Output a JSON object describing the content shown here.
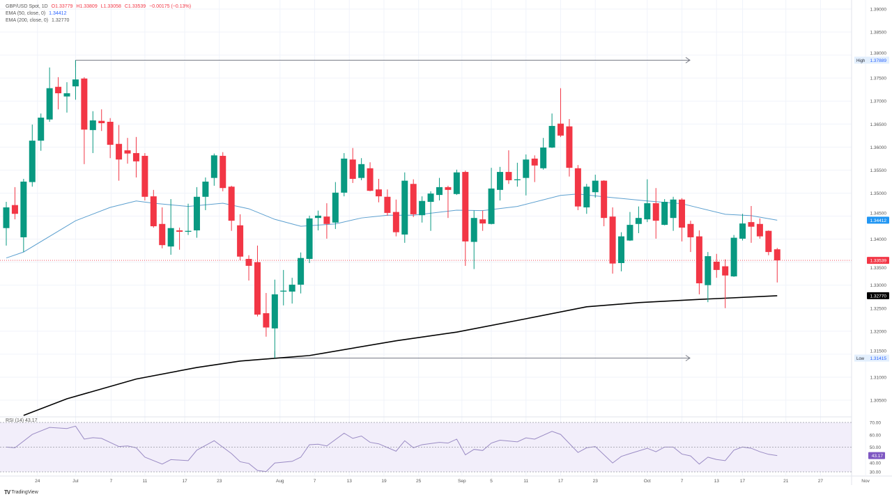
{
  "legend": {
    "symbol": "GBP/USD Spot, 1D",
    "open": "O1.33779",
    "high": "H1.33809",
    "low": "L1.33058",
    "close": "C1.33539",
    "change": "−0.00175 (−0.13%)",
    "ema50_label": "EMA (50, close, 0)",
    "ema50_value": "1.34412",
    "ema200_label": "EMA (200, close, 0)",
    "ema200_value": "1.32770",
    "rsi_label": "RSI (14)",
    "rsi_value": "43.17"
  },
  "footer": {
    "brand": "TradingView",
    "logo_text": "TV"
  },
  "colors": {
    "up": "#089981",
    "down": "#f23645",
    "ema50": "#5b9fcf",
    "ema200": "#000000",
    "rsi": "#9a8bc4",
    "rsi_band": "#f2eefa"
  },
  "chart_data": [
    {
      "type": "candlestick",
      "title": "GBP/USD Spot, 1D",
      "ylim": [
        1.3,
        1.39
      ],
      "grid": true,
      "y_ticks": [
        "1.39000",
        "1.38500",
        "1.38000",
        "1.37500",
        "1.37000",
        "1.36500",
        "1.36000",
        "1.35500",
        "1.35000",
        "1.34500",
        "1.34000",
        "1.33500",
        "1.33000",
        "1.32500",
        "1.32000",
        "1.31500",
        "1.31000",
        "1.30500"
      ],
      "x_ticks": [
        "24",
        "Jul",
        "7",
        "11",
        "17",
        "23",
        "Aug",
        "7",
        "13",
        "19",
        "25",
        "Sep",
        "5",
        "11",
        "17",
        "23",
        "Oct",
        "7",
        "13",
        "17",
        "21",
        "27",
        "Nov"
      ],
      "candles_ohlc": [
        [
          1.3424,
          1.3481,
          1.3386,
          1.3469
        ],
        [
          1.3474,
          1.3513,
          1.3443,
          1.3455
        ],
        [
          1.3404,
          1.3531,
          1.3372,
          1.3525
        ],
        [
          1.3524,
          1.3649,
          1.3514,
          1.3614
        ],
        [
          1.3614,
          1.3673,
          1.3592,
          1.3664
        ],
        [
          1.366,
          1.3773,
          1.3655,
          1.3728
        ],
        [
          1.3731,
          1.3752,
          1.3682,
          1.3717
        ],
        [
          1.371,
          1.3741,
          1.3675,
          1.3717
        ],
        [
          1.3732,
          1.37889,
          1.3703,
          1.3747
        ],
        [
          1.3749,
          1.3752,
          1.3563,
          1.3638
        ],
        [
          1.3637,
          1.3678,
          1.3587,
          1.3658
        ],
        [
          1.3657,
          1.3682,
          1.3635,
          1.3652
        ],
        [
          1.3655,
          1.3663,
          1.3576,
          1.3605
        ],
        [
          1.3607,
          1.3648,
          1.3527,
          1.3573
        ],
        [
          1.3593,
          1.362,
          1.3564,
          1.3586
        ],
        [
          1.3587,
          1.3622,
          1.3534,
          1.3569
        ],
        [
          1.3581,
          1.3587,
          1.3484,
          1.3492
        ],
        [
          1.3493,
          1.3507,
          1.3425,
          1.3428
        ],
        [
          1.3433,
          1.3469,
          1.338,
          1.3387
        ],
        [
          1.3384,
          1.3487,
          1.3366,
          1.3424
        ],
        [
          1.3419,
          1.3425,
          1.3377,
          1.3416
        ],
        [
          1.3416,
          1.3477,
          1.3409,
          1.3418
        ],
        [
          1.3419,
          1.3513,
          1.3403,
          1.3492
        ],
        [
          1.3492,
          1.3534,
          1.3463,
          1.3525
        ],
        [
          1.3533,
          1.3586,
          1.3516,
          1.3582
        ],
        [
          1.3581,
          1.3589,
          1.3504,
          1.3511
        ],
        [
          1.3514,
          1.3516,
          1.3418,
          1.344
        ],
        [
          1.343,
          1.3454,
          1.3354,
          1.3362
        ],
        [
          1.3357,
          1.3365,
          1.331,
          1.3342
        ],
        [
          1.335,
          1.3386,
          1.3232,
          1.3236
        ],
        [
          1.3239,
          1.3283,
          1.3188,
          1.3208
        ],
        [
          1.3206,
          1.3312,
          1.31415,
          1.328
        ],
        [
          1.3286,
          1.3333,
          1.3256,
          1.3288
        ],
        [
          1.3286,
          1.3316,
          1.326,
          1.3301
        ],
        [
          1.3301,
          1.3371,
          1.3282,
          1.3359
        ],
        [
          1.3357,
          1.3451,
          1.3348,
          1.3445
        ],
        [
          1.3446,
          1.3462,
          1.3419,
          1.3451
        ],
        [
          1.3449,
          1.3478,
          1.3401,
          1.3433
        ],
        [
          1.3436,
          1.3524,
          1.3422,
          1.3501
        ],
        [
          1.3501,
          1.3587,
          1.3493,
          1.3575
        ],
        [
          1.3573,
          1.3598,
          1.3522,
          1.3531
        ],
        [
          1.3533,
          1.3576,
          1.3528,
          1.3563
        ],
        [
          1.3554,
          1.3567,
          1.3504,
          1.3505
        ],
        [
          1.3508,
          1.3531,
          1.348,
          1.3493
        ],
        [
          1.3492,
          1.3508,
          1.3451,
          1.3457
        ],
        [
          1.3459,
          1.3486,
          1.3406,
          1.3415
        ],
        [
          1.341,
          1.3545,
          1.3392,
          1.3527
        ],
        [
          1.352,
          1.353,
          1.3448,
          1.3454
        ],
        [
          1.3452,
          1.3493,
          1.3436,
          1.3483
        ],
        [
          1.3481,
          1.3504,
          1.3418,
          1.3499
        ],
        [
          1.3496,
          1.3533,
          1.3484,
          1.3513
        ],
        [
          1.3513,
          1.3516,
          1.3446,
          1.3507
        ],
        [
          1.3498,
          1.3551,
          1.3496,
          1.3545
        ],
        [
          1.3546,
          1.3549,
          1.3342,
          1.3395
        ],
        [
          1.3394,
          1.3462,
          1.3335,
          1.3446
        ],
        [
          1.3443,
          1.3462,
          1.3418,
          1.3434
        ],
        [
          1.3433,
          1.3555,
          1.3432,
          1.351
        ],
        [
          1.3507,
          1.3557,
          1.3484,
          1.3546
        ],
        [
          1.3546,
          1.3593,
          1.352,
          1.3528
        ],
        [
          1.3528,
          1.3566,
          1.3514,
          1.353
        ],
        [
          1.3533,
          1.3584,
          1.3495,
          1.3573
        ],
        [
          1.3575,
          1.3582,
          1.3524,
          1.356
        ],
        [
          1.3554,
          1.362,
          1.3551,
          1.3599
        ],
        [
          1.3599,
          1.3673,
          1.3598,
          1.3646
        ],
        [
          1.3651,
          1.3728,
          1.3622,
          1.3625
        ],
        [
          1.3645,
          1.3661,
          1.3536,
          1.3555
        ],
        [
          1.3554,
          1.3561,
          1.3463,
          1.3471
        ],
        [
          1.3469,
          1.352,
          1.3455,
          1.3514
        ],
        [
          1.3502,
          1.354,
          1.349,
          1.3527
        ],
        [
          1.3527,
          1.3528,
          1.3428,
          1.3446
        ],
        [
          1.3449,
          1.3469,
          1.3325,
          1.3347
        ],
        [
          1.3348,
          1.3415,
          1.333,
          1.3406
        ],
        [
          1.3397,
          1.3459,
          1.3396,
          1.3431
        ],
        [
          1.3433,
          1.3471,
          1.3413,
          1.3446
        ],
        [
          1.3443,
          1.353,
          1.3437,
          1.3478
        ],
        [
          1.3478,
          1.3511,
          1.3401,
          1.344
        ],
        [
          1.3431,
          1.3487,
          1.343,
          1.3481
        ],
        [
          1.3446,
          1.3492,
          1.3418,
          1.3486
        ],
        [
          1.3486,
          1.3489,
          1.3395,
          1.3425
        ],
        [
          1.3433,
          1.344,
          1.3372,
          1.3404
        ],
        [
          1.3406,
          1.3419,
          1.328,
          1.3304
        ],
        [
          1.33,
          1.3372,
          1.3263,
          1.3363
        ],
        [
          1.3351,
          1.3368,
          1.3316,
          1.3333
        ],
        [
          1.3341,
          1.3356,
          1.325,
          1.3321
        ],
        [
          1.3319,
          1.3409,
          1.3318,
          1.3403
        ],
        [
          1.3401,
          1.3455,
          1.3397,
          1.3434
        ],
        [
          1.3437,
          1.3472,
          1.3392,
          1.3427
        ],
        [
          1.3433,
          1.3445,
          1.3401,
          1.3406
        ],
        [
          1.3418,
          1.3419,
          1.3365,
          1.3372
        ],
        [
          1.33779,
          1.33809,
          1.33058,
          1.33539
        ]
      ],
      "ema50": [
        [
          0,
          1.3359
        ],
        [
          2,
          1.3372
        ],
        [
          8,
          1.344
        ],
        [
          12,
          1.3469
        ],
        [
          15,
          1.3483
        ],
        [
          17,
          1.3478
        ],
        [
          21,
          1.3471
        ],
        [
          25,
          1.3478
        ],
        [
          28,
          1.3466
        ],
        [
          31,
          1.3443
        ],
        [
          34,
          1.3428
        ],
        [
          38,
          1.3433
        ],
        [
          41,
          1.3446
        ],
        [
          44,
          1.3452
        ],
        [
          47,
          1.3452
        ],
        [
          52,
          1.3463
        ],
        [
          55,
          1.3462
        ],
        [
          59,
          1.3471
        ],
        [
          64,
          1.3495
        ],
        [
          66,
          1.3498
        ],
        [
          69,
          1.3492
        ],
        [
          74,
          1.3483
        ],
        [
          78,
          1.3477
        ],
        [
          83,
          1.3454
        ],
        [
          86,
          1.3451
        ],
        [
          89,
          1.34412
        ]
      ],
      "ema200": [
        [
          2,
          1.3017
        ],
        [
          7,
          1.3053
        ],
        [
          15,
          1.3096
        ],
        [
          22,
          1.3121
        ],
        [
          27,
          1.3135
        ],
        [
          31,
          1.3141
        ],
        [
          35,
          1.3147
        ],
        [
          45,
          1.3179
        ],
        [
          52,
          1.3198
        ],
        [
          60,
          1.3227
        ],
        [
          67,
          1.3253
        ],
        [
          73,
          1.3262
        ],
        [
          80,
          1.3269
        ],
        [
          89,
          1.3277
        ]
      ],
      "annotations": {
        "high_label": "High",
        "high_value": "1.37889",
        "high_index": 8,
        "low_label": "Low",
        "low_value": "1.31415",
        "low_index": 31,
        "last_price": "1.33539",
        "ema50_last": "1.34412",
        "ema200_last": "1.32770"
      }
    },
    {
      "type": "line",
      "title": "RSI (14)",
      "ylim": [
        30,
        70
      ],
      "y_ticks": [
        "70.00",
        "60.00",
        "50.00",
        "40.00",
        "30.00"
      ],
      "band": [
        30,
        70
      ],
      "midline": 50,
      "last_value": "43.17",
      "rsi": [
        [
          0,
          50.1
        ],
        [
          1,
          49.5
        ],
        [
          3,
          60.3
        ],
        [
          5,
          66.0
        ],
        [
          7,
          65.1
        ],
        [
          8,
          67.0
        ],
        [
          9,
          56.5
        ],
        [
          10,
          57.7
        ],
        [
          11,
          57.1
        ],
        [
          13,
          50.5
        ],
        [
          14,
          51.0
        ],
        [
          15,
          49.5
        ],
        [
          16,
          41.9
        ],
        [
          18,
          36.3
        ],
        [
          19,
          39.9
        ],
        [
          21,
          39.1
        ],
        [
          22,
          47.6
        ],
        [
          24,
          55.2
        ],
        [
          26,
          44.8
        ],
        [
          27,
          38.2
        ],
        [
          28,
          36.8
        ],
        [
          29,
          31.1
        ],
        [
          30,
          30.2
        ],
        [
          31,
          37.2
        ],
        [
          33,
          38.5
        ],
        [
          34,
          41.9
        ],
        [
          35,
          52.0
        ],
        [
          36,
          52.4
        ],
        [
          37,
          51.0
        ],
        [
          39,
          61.3
        ],
        [
          40,
          57.1
        ],
        [
          41,
          59.0
        ],
        [
          42,
          53.9
        ],
        [
          43,
          52.7
        ],
        [
          45,
          46.7
        ],
        [
          46,
          55.2
        ],
        [
          47,
          49.5
        ],
        [
          48,
          52.0
        ],
        [
          50,
          53.9
        ],
        [
          51,
          53.3
        ],
        [
          52,
          56.5
        ],
        [
          53,
          43.8
        ],
        [
          54,
          48.2
        ],
        [
          55,
          47.3
        ],
        [
          56,
          53.3
        ],
        [
          57,
          55.6
        ],
        [
          59,
          54.3
        ],
        [
          60,
          57.5
        ],
        [
          61,
          56.5
        ],
        [
          63,
          62.8
        ],
        [
          64,
          60.3
        ],
        [
          66,
          45.7
        ],
        [
          67,
          49.5
        ],
        [
          68,
          50.5
        ],
        [
          70,
          37.2
        ],
        [
          71,
          42.5
        ],
        [
          72,
          44.8
        ],
        [
          74,
          49.1
        ],
        [
          75,
          46.3
        ],
        [
          76,
          50.1
        ],
        [
          77,
          50.1
        ],
        [
          78,
          44.4
        ],
        [
          79,
          42.9
        ],
        [
          80,
          36.3
        ],
        [
          81,
          41.9
        ],
        [
          82,
          40.0
        ],
        [
          83,
          39.1
        ],
        [
          84,
          47.6
        ],
        [
          85,
          50.1
        ],
        [
          86,
          49.1
        ],
        [
          87,
          46.3
        ],
        [
          88,
          44.2
        ],
        [
          89,
          43.17
        ]
      ]
    }
  ]
}
